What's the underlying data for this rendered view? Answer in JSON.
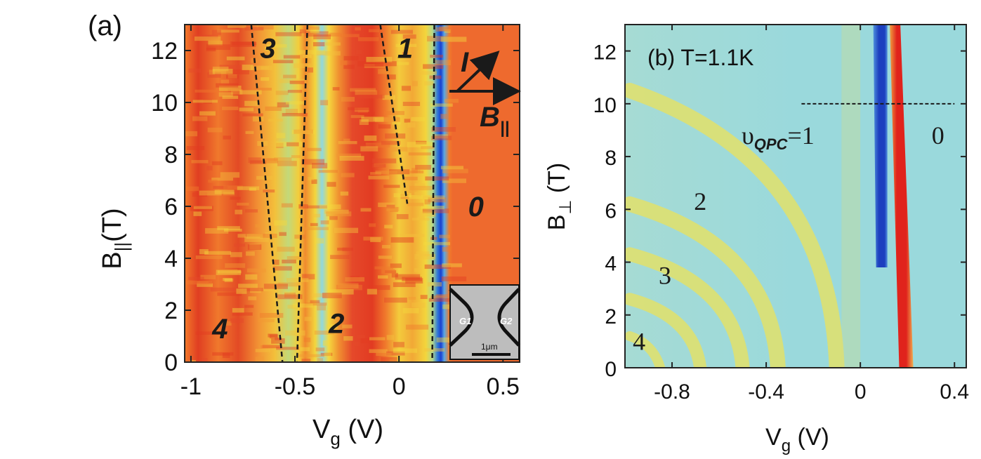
{
  "chart_data": [
    {
      "type": "heatmap",
      "panel_label": "(a)",
      "xlabel": "V",
      "xlabel_sub": "g",
      "xlabel_unit": " (V)",
      "ylabel": "B",
      "ylabel_sub": "||",
      "ylabel_unit": "(T)",
      "xlim": [
        -1.03,
        0.58
      ],
      "ylim": [
        0,
        13
      ],
      "xticks": [
        -1,
        -0.5,
        0,
        0.5
      ],
      "xtick_labels": [
        "-1",
        "-0.5",
        "0",
        "0.5"
      ],
      "yticks": [
        0,
        2,
        4,
        6,
        8,
        10,
        12
      ],
      "ytick_labels": [
        "0",
        "2",
        "4",
        "6",
        "8",
        "10",
        "12"
      ],
      "annotations": [
        {
          "text": "3",
          "x": -0.63,
          "y": 12.1
        },
        {
          "text": "1",
          "x": 0.03,
          "y": 12.1
        },
        {
          "text": "0",
          "x": 0.37,
          "y": 6.0
        },
        {
          "text": "2",
          "x": -0.3,
          "y": 1.5
        },
        {
          "text": "4",
          "x": -0.86,
          "y": 1.3
        }
      ],
      "arrow_labels": {
        "current": "I",
        "field": "B",
        "field_sub": "||"
      },
      "dashed_lines": [
        {
          "x": [
            -0.71,
            -0.56
          ],
          "y": [
            13,
            0
          ]
        },
        {
          "x": [
            -0.44,
            -0.49
          ],
          "y": [
            13,
            0
          ]
        },
        {
          "x": [
            -0.09,
            0.04
          ],
          "y": [
            13,
            6.1
          ]
        },
        {
          "x": [
            0.17,
            0.16
          ],
          "y": [
            13,
            0
          ]
        }
      ],
      "inset": {
        "gate_left": "G1",
        "gate_right": "G2",
        "scale_bar": "1μm"
      },
      "colors": {
        "red": "#e23b22",
        "orange": "#f07a2c",
        "yellow": "#f4dc3c",
        "cyan": "#8ed8e0",
        "blue": "#1a3fd0",
        "flat": "#ee6a2e"
      }
    },
    {
      "type": "heatmap",
      "title": "(b) T=1.1K",
      "xlabel": "V",
      "xlabel_sub": "g",
      "xlabel_unit": " (V)",
      "ylabel": "B",
      "ylabel_sub": "⊥",
      "ylabel_unit": " (T)",
      "xlim": [
        -1.0,
        0.45
      ],
      "ylim": [
        0,
        13
      ],
      "xticks": [
        -0.8,
        -0.4,
        0,
        0.4
      ],
      "xtick_labels": [
        "-0.8",
        "-0.4",
        "0",
        "0.4"
      ],
      "yticks": [
        0,
        2,
        4,
        6,
        8,
        10,
        12
      ],
      "ytick_labels": [
        "0",
        "2",
        "4",
        "6",
        "8",
        "10",
        "12"
      ],
      "annotations": [
        {
          "text": "υ",
          "sub": "QPC",
          "suffix": "=1",
          "x": -0.35,
          "y": 8.8
        },
        {
          "text": "0",
          "x": 0.33,
          "y": 8.8
        },
        {
          "text": "2",
          "x": -0.68,
          "y": 6.3
        },
        {
          "text": "3",
          "x": -0.83,
          "y": 3.5
        },
        {
          "text": "4",
          "x": -0.94,
          "y": 1.0
        }
      ],
      "dashed_lines": [
        {
          "x": [
            -0.25,
            0.4
          ],
          "y": [
            10,
            10
          ]
        }
      ],
      "colors": {
        "background": "#9ad9dc",
        "yellow": "#e2e06a",
        "red": "#e0231c",
        "blue": "#1c3fbf"
      }
    }
  ]
}
